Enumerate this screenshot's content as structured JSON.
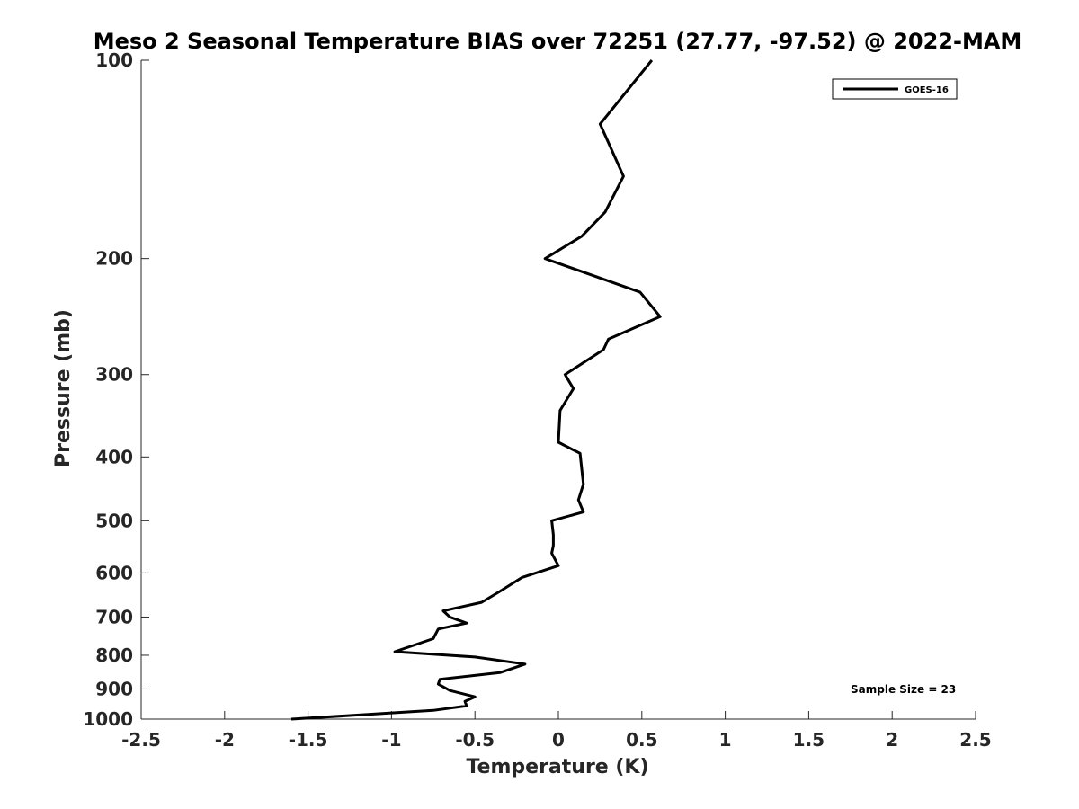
{
  "chart_data": {
    "type": "line",
    "title": "Meso 2 Seasonal Temperature BIAS over 72251 (27.77, -97.52) @ 2022-MAM",
    "xlabel": "Temperature (K)",
    "ylabel": "Pressure (mb)",
    "xlim": [
      -2.5,
      2.5
    ],
    "ylim": [
      100,
      1000
    ],
    "y_scale": "log",
    "y_reversed": true,
    "x_ticks": [
      -2.5,
      -2,
      -1.5,
      -1,
      -0.5,
      0,
      0.5,
      1,
      1.5,
      2,
      2.5
    ],
    "x_tick_labels": [
      "-2.5",
      "-2",
      "-1.5",
      "-1",
      "-0.5",
      "0",
      "0.5",
      "1",
      "1.5",
      "2",
      "2.5"
    ],
    "y_ticks": [
      100,
      200,
      300,
      400,
      500,
      600,
      700,
      800,
      900,
      1000
    ],
    "y_tick_labels": [
      "100",
      "200",
      "300",
      "400",
      "500",
      "600",
      "700",
      "800",
      "900",
      "1000"
    ],
    "grid": false,
    "legend_position": "top-right",
    "series": [
      {
        "name": "GOES-16",
        "color": "#000000",
        "x": [
          0.56,
          0.25,
          0.39,
          0.28,
          0.14,
          -0.08,
          0.49,
          0.61,
          0.3,
          0.27,
          0.04,
          0.09,
          0.01,
          0.0,
          0.13,
          0.15,
          0.12,
          0.15,
          -0.04,
          -0.03,
          -0.03,
          -0.04,
          0.0,
          -0.22,
          -0.35,
          -0.46,
          -0.69,
          -0.65,
          -0.55,
          -0.72,
          -0.75,
          -0.98,
          -0.5,
          -0.2,
          -0.35,
          -0.71,
          -0.72,
          -0.65,
          -0.5,
          -0.56,
          -0.55,
          -0.75,
          -1.6
        ],
        "y": [
          100,
          125,
          150,
          170,
          185,
          200,
          225,
          245,
          265,
          275,
          300,
          315,
          340,
          380,
          395,
          440,
          465,
          485,
          500,
          525,
          545,
          560,
          585,
          610,
          640,
          665,
          685,
          700,
          715,
          730,
          755,
          790,
          805,
          825,
          850,
          870,
          885,
          905,
          925,
          940,
          955,
          970,
          1000
        ]
      }
    ],
    "annotations": [
      {
        "text": "Sample Size = 23"
      }
    ]
  }
}
